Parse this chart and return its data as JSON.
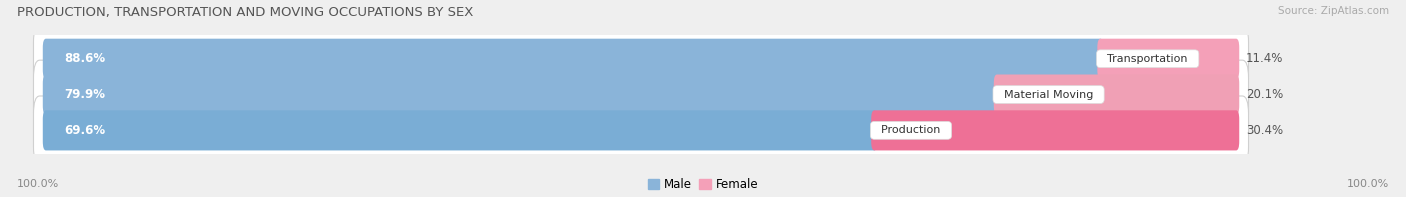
{
  "title": "PRODUCTION, TRANSPORTATION AND MOVING OCCUPATIONS BY SEX",
  "source": "Source: ZipAtlas.com",
  "categories": [
    "Transportation",
    "Material Moving",
    "Production"
  ],
  "male_values": [
    88.6,
    79.9,
    69.6
  ],
  "female_values": [
    11.4,
    20.1,
    30.4
  ],
  "male_colors": [
    "#8ab4d9",
    "#8ab4d9",
    "#7aadd5"
  ],
  "female_colors": [
    "#f4a0b8",
    "#f0a0b5",
    "#ee7096"
  ],
  "bg_color": "#efefef",
  "row_bg_color": "#e2e2e2",
  "title_fontsize": 9.5,
  "source_fontsize": 7.5,
  "axis_label_fontsize": 8,
  "bar_label_fontsize": 8.5,
  "category_fontsize": 8,
  "left_label": "100.0%",
  "right_label": "100.0%"
}
